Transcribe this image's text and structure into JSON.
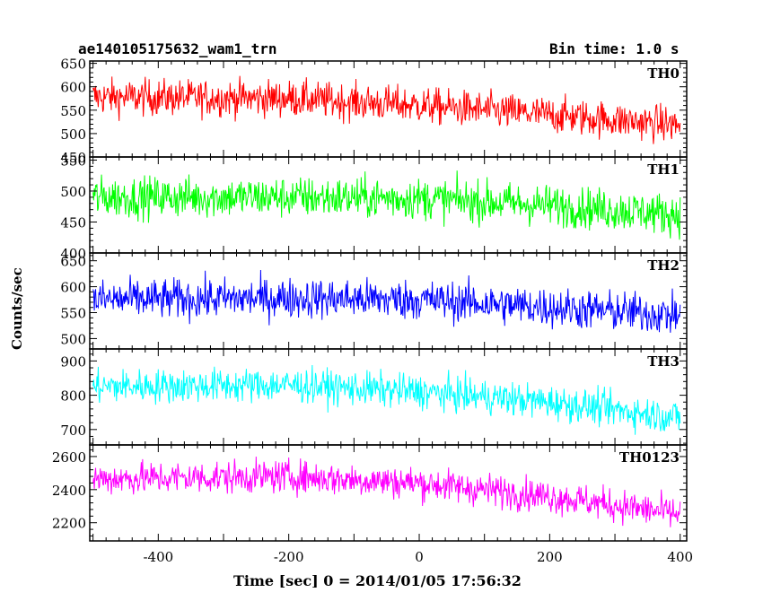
{
  "header": {
    "title_left": "ae140105175632_wam1_trn",
    "title_right": "Bin time: 1.0 s"
  },
  "chart_data": {
    "type": "line",
    "title": "ae140105175632_wam1_trn",
    "subtitle": "Bin time: 1.0 s",
    "xlabel": "Time [sec] 0 = 2014/01/05 17:56:32",
    "ylabel": "Counts/sec",
    "xlim": [
      -505,
      410
    ],
    "x_ticks": [
      -400,
      -200,
      0,
      200,
      400
    ],
    "grid": false,
    "panels": [
      {
        "name": "TH0",
        "color": "#ff0000",
        "ylim": [
          450,
          655
        ],
        "y_ticks": [
          450,
          500,
          550,
          600,
          650
        ],
        "trend": {
          "x": [
            -500,
            -200,
            0,
            200,
            400
          ],
          "y": [
            578,
            575,
            560,
            540,
            518
          ]
        },
        "noise_amplitude": 35
      },
      {
        "name": "TH1",
        "color": "#00ff00",
        "ylim": [
          400,
          555
        ],
        "y_ticks": [
          400,
          450,
          500,
          550
        ],
        "trend": {
          "x": [
            -500,
            -200,
            0,
            200,
            400
          ],
          "y": [
            490,
            490,
            488,
            477,
            462
          ]
        },
        "noise_amplitude": 30
      },
      {
        "name": "TH2",
        "color": "#0000ff",
        "ylim": [
          480,
          665
        ],
        "y_ticks": [
          500,
          550,
          600,
          650
        ],
        "trend": {
          "x": [
            -500,
            -200,
            0,
            200,
            400
          ],
          "y": [
            575,
            578,
            575,
            560,
            545
          ]
        },
        "noise_amplitude": 35
      },
      {
        "name": "TH3",
        "color": "#00ffff",
        "ylim": [
          655,
          935
        ],
        "y_ticks": [
          700,
          800,
          900
        ],
        "trend": {
          "x": [
            -500,
            -200,
            0,
            200,
            400
          ],
          "y": [
            825,
            830,
            810,
            780,
            735
          ]
        },
        "noise_amplitude": 45
      },
      {
        "name": "TH0123",
        "color": "#ff00ff",
        "ylim": [
          2090,
          2670
        ],
        "y_ticks": [
          2200,
          2400,
          2600
        ],
        "trend": {
          "x": [
            -500,
            -200,
            0,
            200,
            400
          ],
          "y": [
            2465,
            2480,
            2440,
            2360,
            2250
          ]
        },
        "noise_amplitude": 90
      }
    ]
  }
}
